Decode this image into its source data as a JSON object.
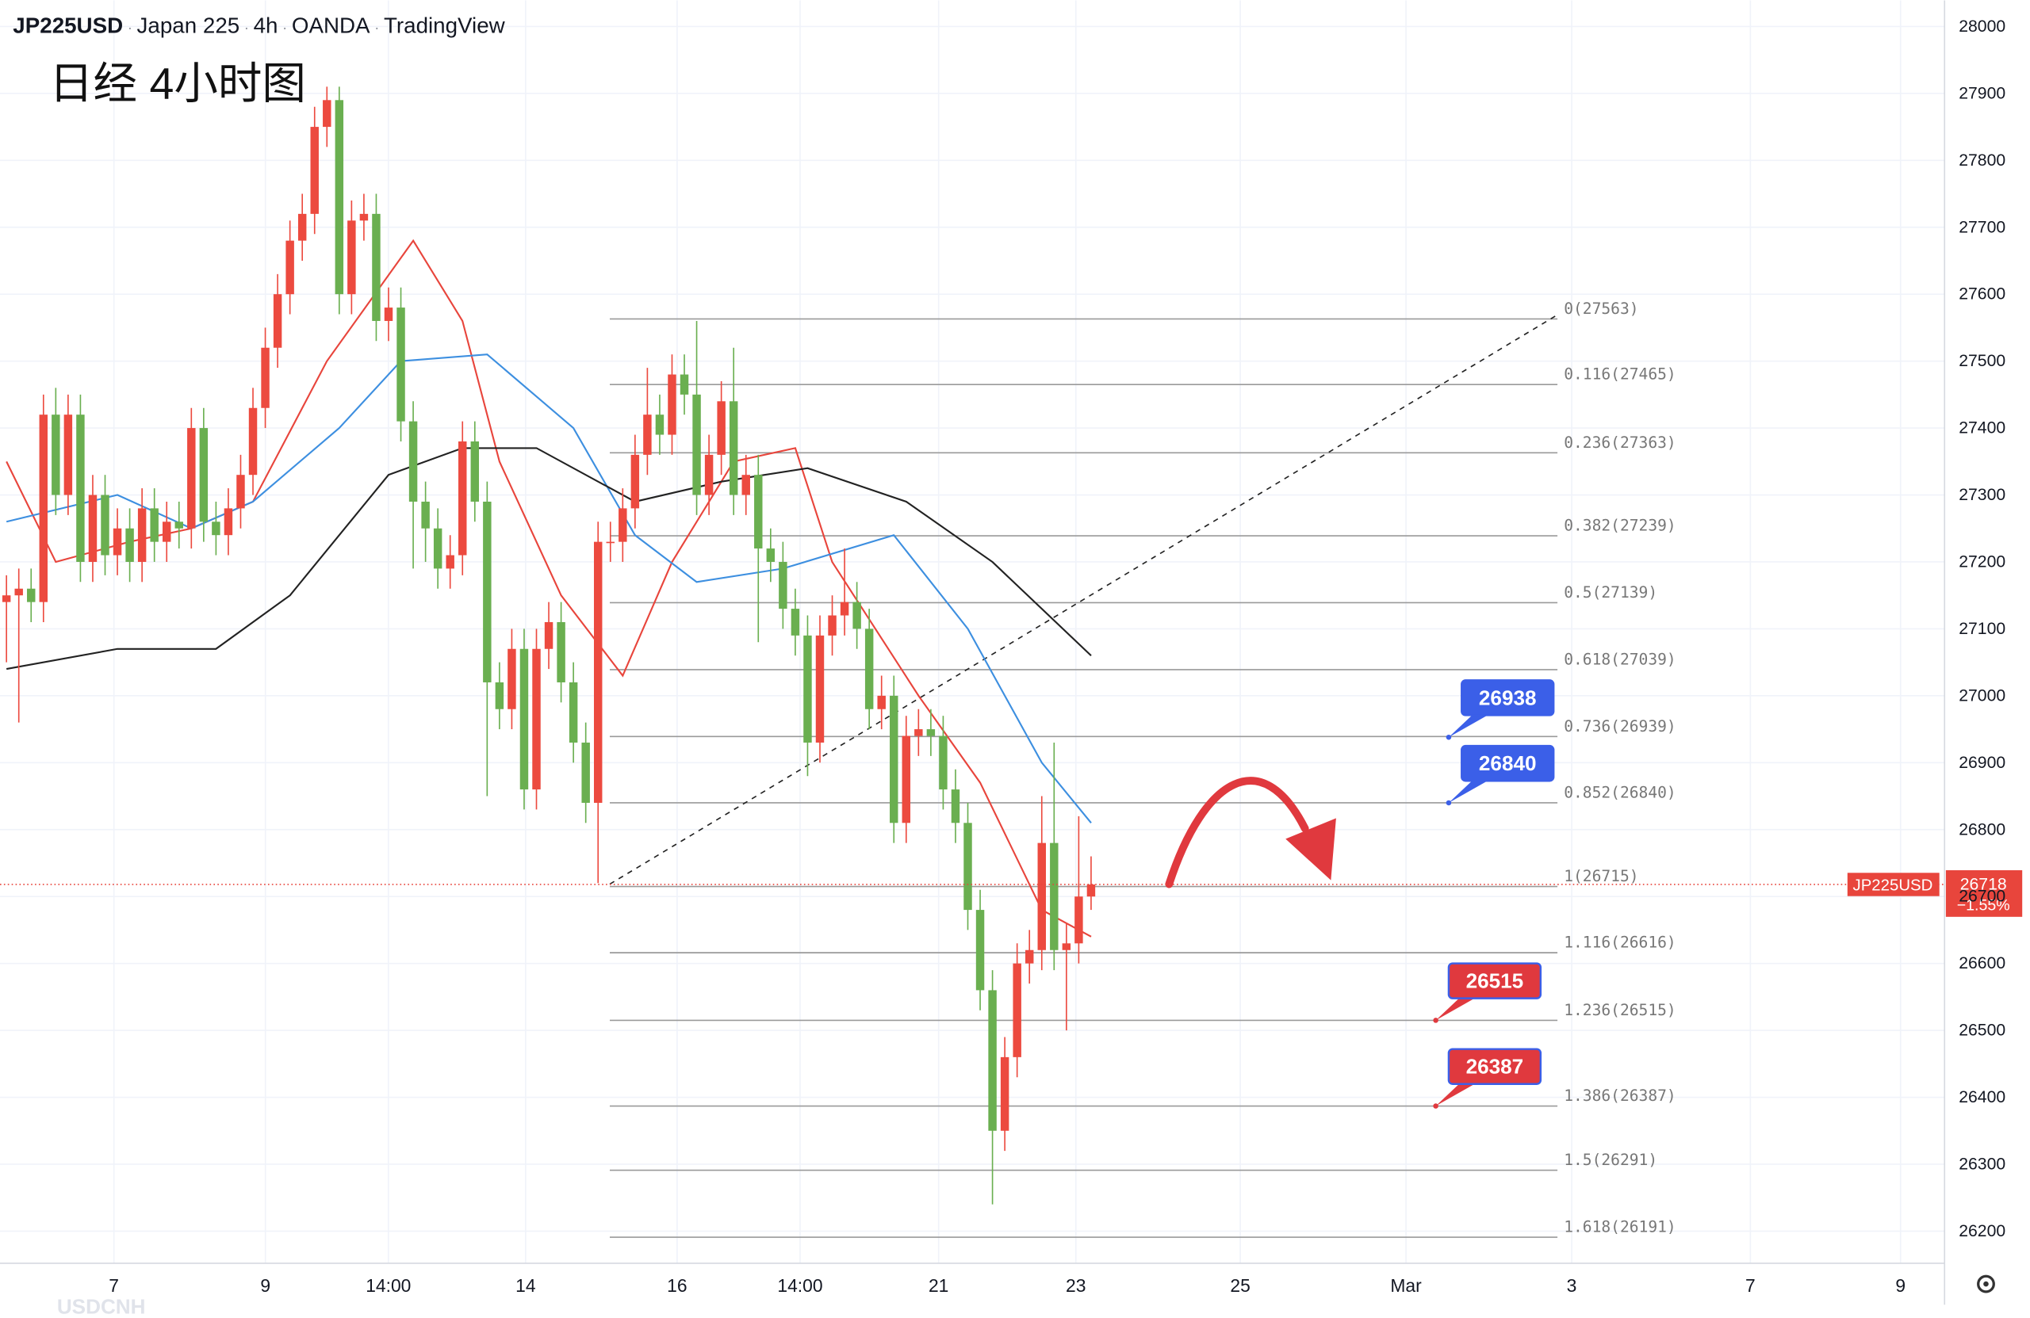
{
  "chart_data": {
    "type": "candlestick",
    "header": [
      "JP225USD",
      "Japan 225",
      "4h",
      "OANDA",
      "TradingView"
    ],
    "title": "日经 4小时图",
    "watermark": "USDCNH",
    "x_labels": [
      "7",
      "9",
      "14:00",
      "14",
      "16",
      "14:00",
      "21",
      "23",
      "25",
      "Mar",
      "3",
      "7",
      "9"
    ],
    "open": [
      27140,
      27150,
      27160,
      27140,
      27420,
      27300,
      27420,
      27200,
      27300,
      27210,
      27250,
      27200,
      27280,
      27230,
      27260,
      27250,
      27400,
      27260,
      27240,
      27280,
      27330,
      27430,
      27520,
      27600,
      27680,
      27720,
      27850,
      27890,
      27600,
      27710,
      27720,
      27560,
      27580,
      27410,
      27290,
      27250,
      27190,
      27210,
      27380,
      27290,
      27020,
      26980,
      27070,
      26860,
      27070,
      27110,
      27020,
      26930,
      26840,
      27230,
      27230,
      27280,
      27360,
      27420,
      27390,
      27480,
      27450,
      27300,
      27360,
      27440,
      27300,
      27330,
      27220,
      27200,
      27130,
      27090,
      26930,
      27090,
      27120,
      27140,
      27100,
      26980,
      27000,
      26810,
      26940,
      26950,
      26940,
      26860,
      26810,
      26680,
      26560,
      26350,
      26460,
      26600,
      26620,
      26780,
      26620,
      26630,
      26700
    ],
    "high": [
      27180,
      27190,
      27190,
      27450,
      27460,
      27450,
      27450,
      27330,
      27330,
      27280,
      27280,
      27310,
      27310,
      27290,
      27290,
      27430,
      27430,
      27290,
      27310,
      27360,
      27460,
      27550,
      27630,
      27710,
      27750,
      27880,
      27910,
      27910,
      27740,
      27750,
      27750,
      27610,
      27610,
      27440,
      27320,
      27280,
      27240,
      27410,
      27410,
      27320,
      27050,
      27100,
      27100,
      27100,
      27140,
      27140,
      27050,
      26960,
      27260,
      27260,
      27310,
      27390,
      27490,
      27450,
      27510,
      27510,
      27560,
      27390,
      27470,
      27520,
      27360,
      27360,
      27250,
      27230,
      27160,
      27120,
      27120,
      27150,
      27220,
      27170,
      27130,
      27030,
      27030,
      26970,
      26980,
      26980,
      26970,
      26890,
      26840,
      26710,
      26590,
      26490,
      26630,
      26650,
      26850,
      26930,
      26660,
      26820,
      26760
    ],
    "low": [
      27050,
      26960,
      27110,
      27110,
      27270,
      27270,
      27170,
      27170,
      27180,
      27180,
      27170,
      27170,
      27200,
      27200,
      27220,
      27220,
      27230,
      27210,
      27210,
      27250,
      27300,
      27400,
      27490,
      27570,
      27650,
      27690,
      27820,
      27570,
      27570,
      27680,
      27530,
      27530,
      27380,
      27190,
      27200,
      27160,
      27160,
      27180,
      27260,
      26850,
      26950,
      26950,
      26830,
      26830,
      27040,
      26990,
      26900,
      26810,
      26720,
      27200,
      27200,
      27250,
      27330,
      27360,
      27360,
      27420,
      27270,
      27270,
      27330,
      27270,
      27270,
      27080,
      27170,
      27100,
      27060,
      26880,
      26900,
      27060,
      27090,
      27070,
      26950,
      26950,
      26780,
      26780,
      26910,
      26910,
      26830,
      26780,
      26650,
      26530,
      26240,
      26320,
      26430,
      26570,
      26590,
      26590,
      26500,
      26600,
      26680
    ],
    "close": [
      27150,
      27160,
      27140,
      27420,
      27300,
      27420,
      27200,
      27300,
      27210,
      27250,
      27200,
      27280,
      27230,
      27260,
      27250,
      27400,
      27260,
      27240,
      27280,
      27330,
      27430,
      27520,
      27600,
      27680,
      27720,
      27850,
      27890,
      27600,
      27710,
      27720,
      27560,
      27580,
      27410,
      27290,
      27250,
      27190,
      27210,
      27380,
      27290,
      27020,
      26980,
      27070,
      26860,
      27070,
      27110,
      27020,
      26930,
      26840,
      27230,
      27230,
      27280,
      27360,
      27420,
      27390,
      27480,
      27450,
      27300,
      27360,
      27440,
      27300,
      27330,
      27220,
      27200,
      27130,
      27090,
      26930,
      27090,
      27120,
      27140,
      27100,
      26980,
      27000,
      26810,
      26940,
      26950,
      26940,
      26860,
      26810,
      26680,
      26560,
      26350,
      26460,
      26600,
      26620,
      26780,
      26620,
      26630,
      26700,
      26718
    ],
    "up_color": "#ec4a3f",
    "down_color": "#6aaf50",
    "moving_averages": [
      {
        "color": "#e8453c",
        "x": [
          0,
          4,
          10,
          15,
          20,
          26,
          33,
          37,
          40,
          45,
          50,
          54,
          59,
          64,
          67,
          74,
          79,
          84,
          88
        ],
        "values": [
          27350,
          27200,
          27230,
          27250,
          27290,
          27500,
          27680,
          27560,
          27350,
          27150,
          27030,
          27200,
          27350,
          27370,
          27200,
          27000,
          26870,
          26680,
          26640
        ]
      },
      {
        "color": "#3d8fe0",
        "x": [
          0,
          9,
          15,
          20,
          27,
          32,
          39,
          46,
          51,
          56,
          63,
          72,
          78,
          84,
          88
        ],
        "values": [
          27260,
          27300,
          27250,
          27290,
          27400,
          27500,
          27510,
          27400,
          27240,
          27170,
          27190,
          27240,
          27100,
          26900,
          26810
        ]
      },
      {
        "color": "#222222",
        "x": [
          0,
          9,
          17,
          23,
          31,
          37,
          43,
          51,
          58,
          65,
          73,
          80,
          88
        ],
        "values": [
          27040,
          27070,
          27070,
          27150,
          27330,
          27370,
          27370,
          27290,
          27320,
          27340,
          27290,
          27200,
          27060
        ]
      }
    ],
    "fib_levels": [
      {
        "label": "0(27563)",
        "value": 27563
      },
      {
        "label": "0.116(27465)",
        "value": 27465
      },
      {
        "label": "0.236(27363)",
        "value": 27363
      },
      {
        "label": "0.382(27239)",
        "value": 27239
      },
      {
        "label": "0.5(27139)",
        "value": 27139
      },
      {
        "label": "0.618(27039)",
        "value": 27039
      },
      {
        "label": "0.736(26939)",
        "value": 26939
      },
      {
        "label": "0.852(26840)",
        "value": 26840
      },
      {
        "label": "1(26715)",
        "value": 26715
      },
      {
        "label": "1.116(26616)",
        "value": 26616
      },
      {
        "label": "1.236(26515)",
        "value": 26515
      },
      {
        "label": "1.386(26387)",
        "value": 26387
      },
      {
        "label": "1.5(26291)",
        "value": 26291
      },
      {
        "label": "1.618(26191)",
        "value": 26191
      }
    ],
    "callouts": [
      {
        "value": 26938,
        "color": "#3b5fe8"
      },
      {
        "value": 26840,
        "color": "#3b5fe8"
      },
      {
        "value": 26515,
        "color": "#e0393e"
      },
      {
        "value": 26387,
        "color": "#e0393e"
      }
    ],
    "last_price": {
      "symbol": "JP225USD",
      "value": 26718,
      "change_label": "−1.55%",
      "color": "#e8453c"
    },
    "ylim": [
      26152,
      28039
    ],
    "yticks": [
      26200,
      26300,
      26400,
      26500,
      26600,
      26700,
      26800,
      26900,
      27000,
      27100,
      27200,
      27300,
      27400,
      27500,
      27600,
      27700,
      27800,
      27900,
      28000
    ],
    "grid": true
  }
}
